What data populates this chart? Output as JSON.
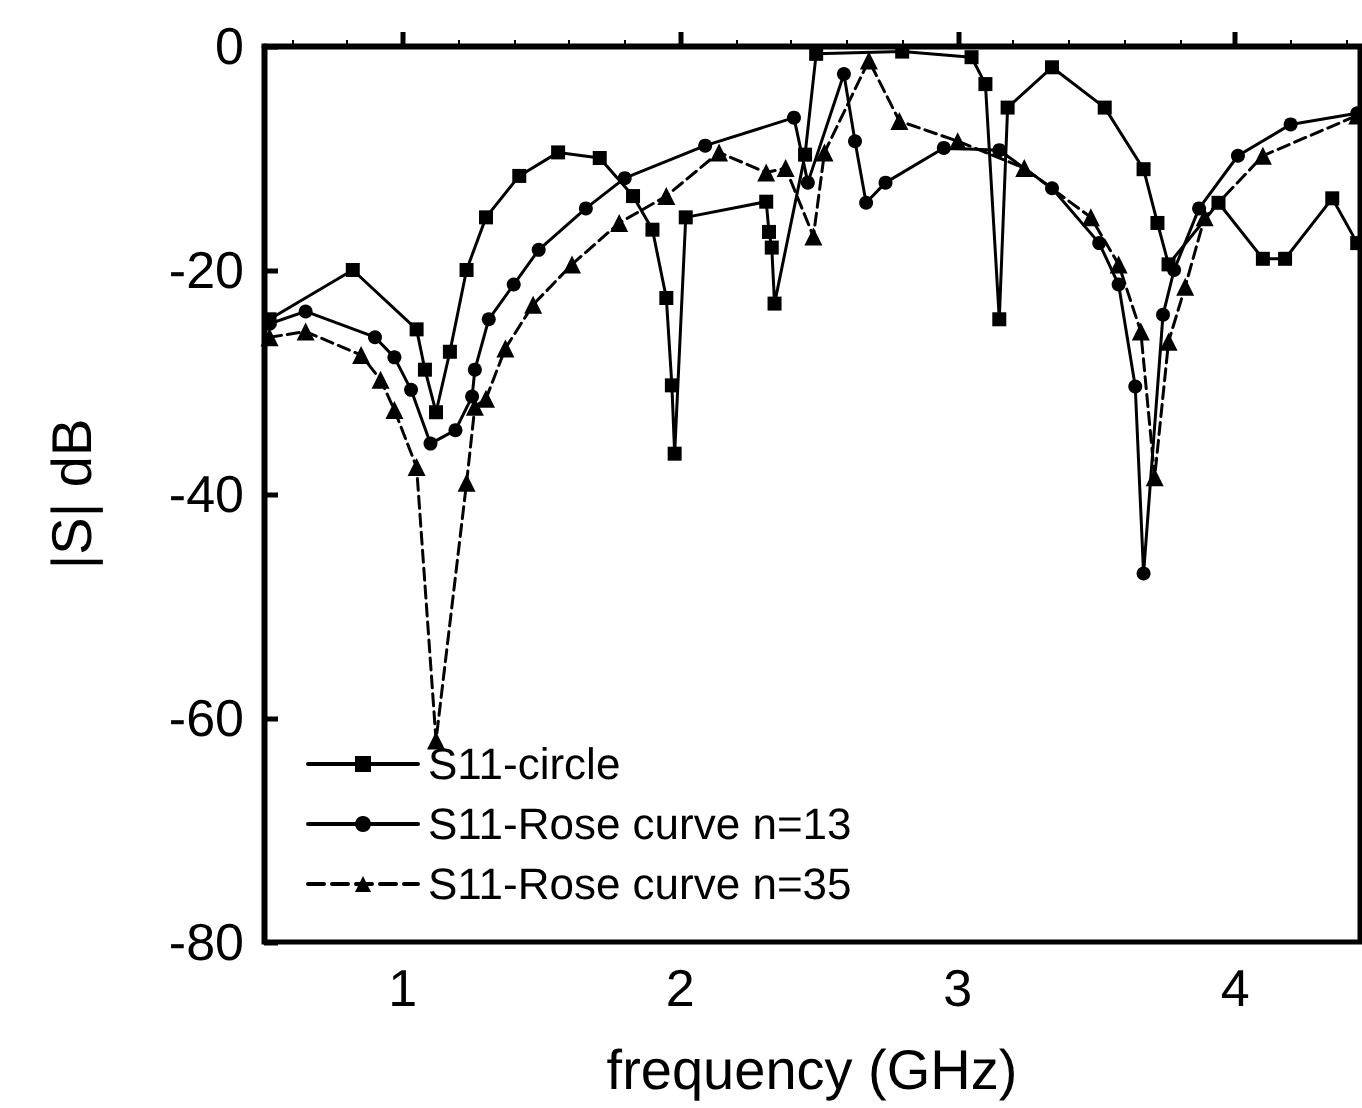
{
  "chart_data": {
    "type": "line",
    "xlabel": "frequency (GHz)",
    "ylabel": "|S| dB",
    "xlim": [
      0.5,
      4.45
    ],
    "xticks": [
      1,
      2,
      3,
      4
    ],
    "ylim": [
      -80,
      0
    ],
    "yticks": [
      -80,
      -60,
      -40,
      -20,
      0
    ],
    "grid": false,
    "legend": "bottom left",
    "series": [
      {
        "name": "S11-circle",
        "color": "#000000",
        "marker": "square",
        "line_style": "solid",
        "x": [
          0.52,
          0.82,
          1.05,
          1.08,
          1.12,
          1.17,
          1.23,
          1.3,
          1.42,
          1.56,
          1.71,
          1.83,
          1.9,
          1.95,
          1.97,
          1.98,
          2.02,
          2.31,
          2.32,
          2.33,
          2.34,
          2.45,
          2.49,
          2.8,
          3.05,
          3.1,
          3.15,
          3.18,
          3.34,
          3.53,
          3.67,
          3.72,
          3.76,
          3.94,
          4.1,
          4.18,
          4.35,
          4.44
        ],
        "values": [
          -24.4,
          -20,
          -25.3,
          -28.9,
          -32.7,
          -27.3,
          -20,
          -15.3,
          -11.6,
          -9.5,
          -10,
          -13.4,
          -16.4,
          -22.5,
          -30.3,
          -36.4,
          -15.3,
          -13.9,
          -16.6,
          -18,
          -23,
          -9.7,
          -0.7,
          -0.5,
          -1,
          -3.4,
          -24.4,
          -5.5,
          -1.9,
          -5.5,
          -11,
          -15.8,
          -19.5,
          -14,
          -19,
          -19,
          -13.6,
          -17.6
        ]
      },
      {
        "name": "S11-Rose curve n=13",
        "color": "#000000",
        "marker": "circle",
        "line_style": "solid",
        "x": [
          0.52,
          0.65,
          0.9,
          0.97,
          1.03,
          1.1,
          1.19,
          1.25,
          1.26,
          1.31,
          1.4,
          1.49,
          1.66,
          1.8,
          2.09,
          2.41,
          2.46,
          2.59,
          2.63,
          2.67,
          2.74,
          2.95,
          3.15,
          3.34,
          3.51,
          3.58,
          3.64,
          3.67,
          3.74,
          3.78,
          3.87,
          4.01,
          4.2,
          4.44
        ],
        "values": [
          -24.8,
          -23.7,
          -26,
          -27.8,
          -30.7,
          -35.5,
          -34.3,
          -31.3,
          -28.9,
          -24.4,
          -21.3,
          -18.2,
          -14.5,
          -11.8,
          -8.9,
          -6.4,
          -12.2,
          -2.5,
          -8.5,
          -14,
          -12.2,
          -9.1,
          -9.3,
          -12.7,
          -17.6,
          -21.3,
          -30.4,
          -47.1,
          -24,
          -20,
          -14.5,
          -9.8,
          -7,
          -6
        ]
      },
      {
        "name": "S11-Rose curve n=35",
        "color": "#000000",
        "marker": "triangle",
        "line_style": "dashed",
        "x": [
          0.52,
          0.65,
          0.85,
          0.92,
          0.97,
          1.05,
          1.12,
          1.23,
          1.26,
          1.3,
          1.37,
          1.47,
          1.61,
          1.78,
          1.95,
          2.14,
          2.31,
          2.38,
          2.48,
          2.52,
          2.68,
          2.79,
          3.0,
          3.24,
          3.48,
          3.58,
          3.66,
          3.71,
          3.76,
          3.82,
          3.89,
          4.1,
          4.44
        ],
        "values": [
          -26,
          -25.5,
          -27.6,
          -29.8,
          -32.5,
          -37.6,
          -62,
          -39,
          -32.2,
          -31.5,
          -27,
          -23.1,
          -19.5,
          -15.8,
          -13.4,
          -9.5,
          -11.3,
          -10.9,
          -17,
          -9.5,
          -1.3,
          -6.7,
          -8.5,
          -10.9,
          -15.3,
          -19.5,
          -25.5,
          -38.5,
          -26.4,
          -21.5,
          -15.3,
          -9.8,
          -6.2
        ]
      }
    ]
  }
}
